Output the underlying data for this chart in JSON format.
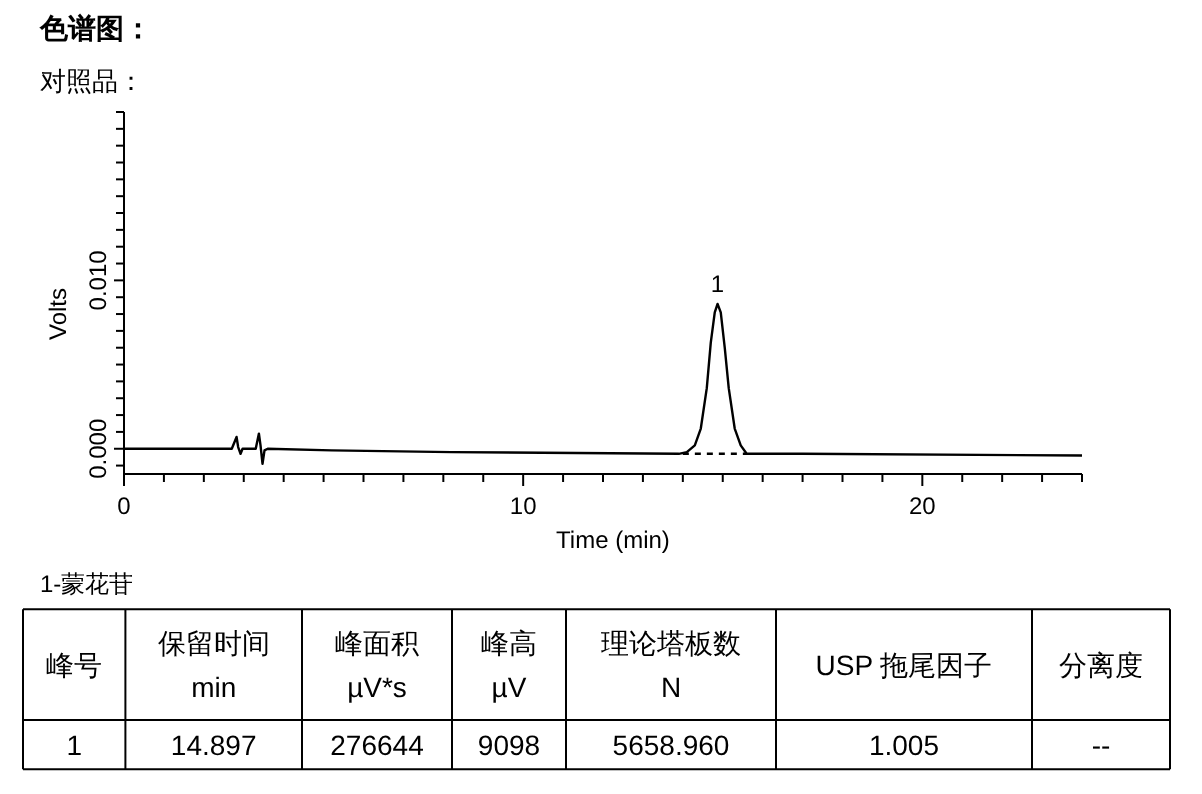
{
  "chart_data": {
    "type": "line",
    "title": "色谱图：",
    "subtitle": "对照品：",
    "xlabel": "Time (min)",
    "ylabel": "Volts",
    "xlim": [
      0,
      24
    ],
    "ylim": [
      -0.0015,
      0.02
    ],
    "xticks": [
      0,
      {
        "value": 1,
        "label": null
      },
      {
        "value": 2,
        "label": null
      },
      {
        "value": 3,
        "label": null
      },
      {
        "value": 4,
        "label": null
      },
      {
        "value": 5,
        "label": null
      },
      {
        "value": 6,
        "label": null
      },
      {
        "value": 7,
        "label": null
      },
      {
        "value": 8,
        "label": null
      },
      {
        "value": 9,
        "label": null
      },
      10,
      {
        "value": 11,
        "label": null
      },
      {
        "value": 12,
        "label": null
      },
      {
        "value": 13,
        "label": null
      },
      {
        "value": 14,
        "label": null
      },
      {
        "value": 15,
        "label": null
      },
      {
        "value": 16,
        "label": null
      },
      {
        "value": 17,
        "label": null
      },
      {
        "value": 18,
        "label": null
      },
      {
        "value": 19,
        "label": null
      },
      20,
      {
        "value": 21,
        "label": null
      },
      {
        "value": 22,
        "label": null
      },
      {
        "value": 23,
        "label": null
      },
      {
        "value": 24,
        "label": null
      }
    ],
    "yticks": [
      {
        "value": -0.001,
        "label": null
      },
      {
        "value": 0,
        "label": "0.000"
      },
      {
        "value": 0.001,
        "label": null
      },
      {
        "value": 0.002,
        "label": null
      },
      {
        "value": 0.003,
        "label": null
      },
      {
        "value": 0.004,
        "label": null
      },
      {
        "value": 0.005,
        "label": null
      },
      {
        "value": 0.006,
        "label": null
      },
      {
        "value": 0.007,
        "label": null
      },
      {
        "value": 0.008,
        "label": null
      },
      {
        "value": 0.009,
        "label": null
      },
      {
        "value": 0.01,
        "label": "0.010"
      },
      {
        "value": 0.011,
        "label": null
      },
      {
        "value": 0.012,
        "label": null
      },
      {
        "value": 0.013,
        "label": null
      },
      {
        "value": 0.014,
        "label": null
      },
      {
        "value": 0.015,
        "label": null
      },
      {
        "value": 0.016,
        "label": null
      },
      {
        "value": 0.017,
        "label": null
      },
      {
        "value": 0.018,
        "label": null
      },
      {
        "value": 0.019,
        "label": null
      },
      {
        "value": 0.02,
        "label": null
      }
    ],
    "series": [
      {
        "color": "#000000",
        "line_style": "solid",
        "x": [
          0,
          2.7,
          2.82,
          2.86,
          2.92,
          2.97,
          3.3,
          3.38,
          3.42,
          3.47,
          3.52,
          3.6,
          5.2,
          8.2,
          13.9,
          14.1,
          14.3,
          14.45,
          14.6,
          14.7,
          14.8,
          14.87,
          14.95,
          15.05,
          15.15,
          15.3,
          15.45,
          15.6,
          17,
          24
        ],
        "values": [
          0,
          0,
          0.0007,
          0.0001,
          -0.0003,
          0,
          0,
          0.0009,
          0.0002,
          -0.0009,
          -0.0001,
          0,
          -0.0001,
          -0.0002,
          -0.0003,
          -0.0002,
          0.0002,
          0.0012,
          0.0036,
          0.0063,
          0.0081,
          0.0086,
          0.0081,
          0.006,
          0.0036,
          0.0012,
          0.0002,
          -0.0003,
          -0.0003,
          -0.0004
        ]
      },
      {
        "color": "#000000",
        "line_style": "dashed",
        "x": [
          14.0,
          15.6
        ],
        "values": [
          -0.0003,
          -0.0003
        ]
      }
    ],
    "annotations": [
      "1",
      "1-蒙花苷",
      "峰号",
      "保留时间\nmin",
      "峰面积\nµV*s",
      "峰高\nµV",
      "理论塔板数\nN",
      "USP 拖尾因子",
      "分离度",
      "1",
      "14.897",
      "276644",
      "9098",
      "5658.960",
      "1.005",
      "--"
    ]
  }
}
